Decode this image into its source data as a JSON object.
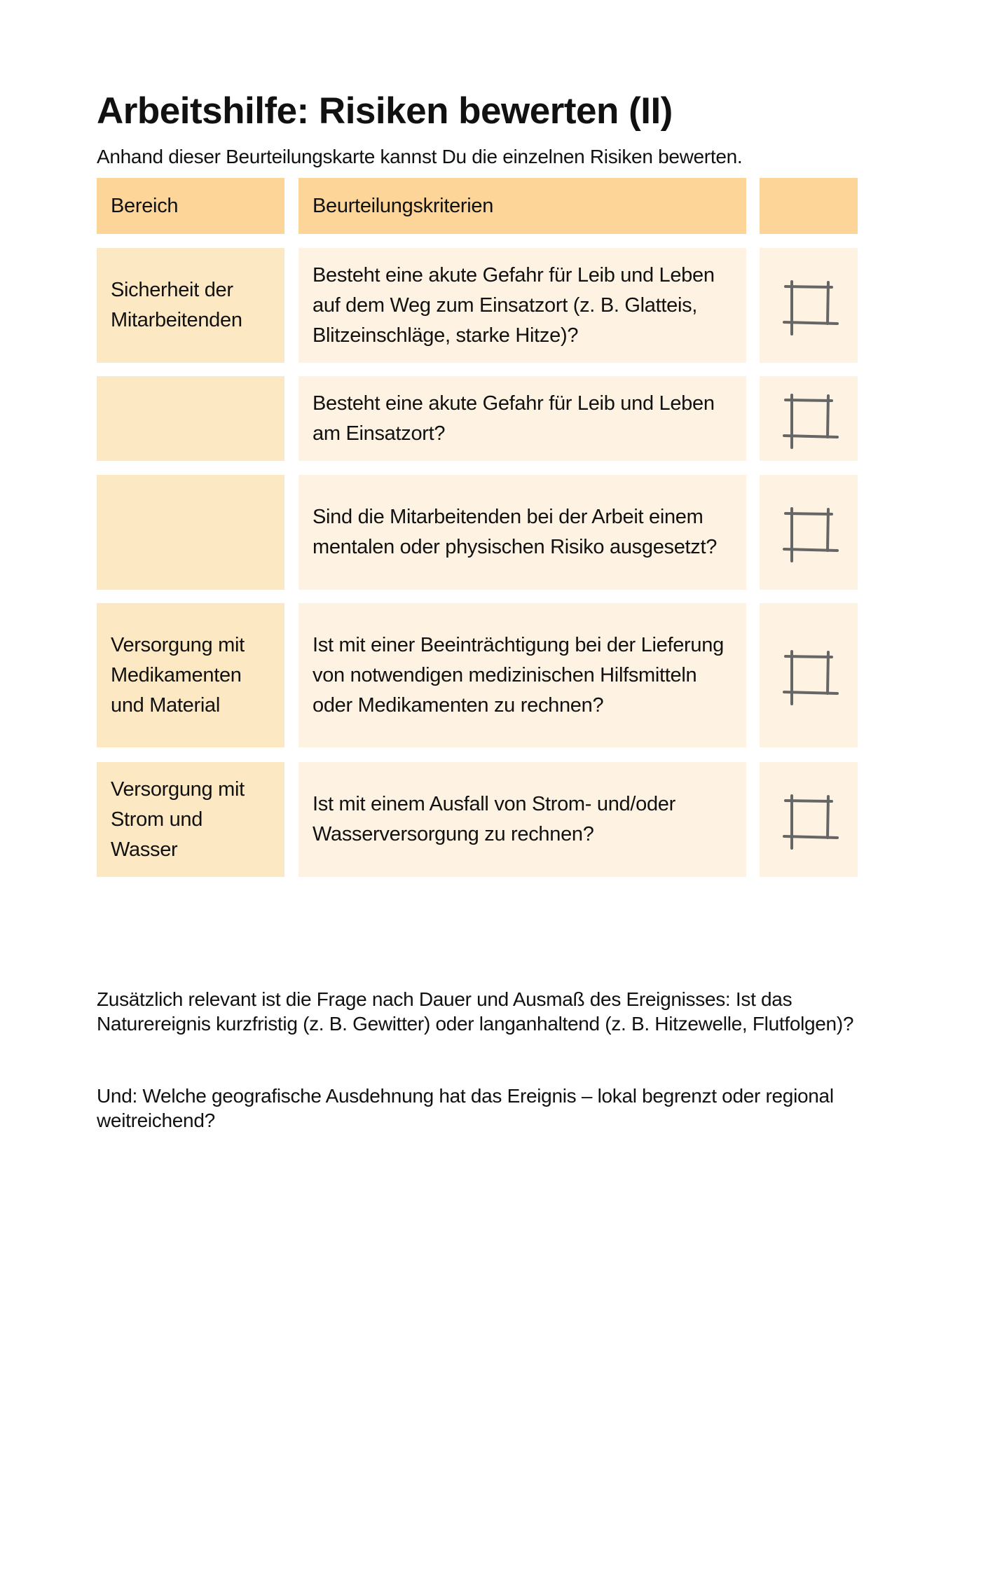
{
  "title": "Arbeitshilfe: Risiken bewerten (II)",
  "subtitle": "Anhand dieser Beurteilungskarte kannst Du die einzelnen Risiken bewerten.",
  "table": {
    "headers": [
      "Bereich",
      "Beurteilungskriterien",
      ""
    ],
    "rows": [
      {
        "bereich": "Sicherheit der Mitarbeitenden",
        "kriterium": "Besteht eine akute Gefahr für Leib und Leben auf dem Weg zum Einsatzort (z. B. Glatteis, Blitzeinschläge, starke Hitze)?",
        "checked": false
      },
      {
        "bereich": "",
        "kriterium": "Besteht eine akute Gefahr für Leib und Leben am Einsatzort?",
        "checked": false
      },
      {
        "bereich": "",
        "kriterium": "Sind die Mitarbeitenden bei der Arbeit einem mentalen oder physischen Risiko ausgesetzt?",
        "checked": false
      },
      {
        "bereich": "Versorgung mit Medikamenten und Material",
        "kriterium": "Ist mit einer Beeinträchtigung bei der Lieferung von notwendigen medizinischen Hilfsmitteln oder Medikamenten zu rechnen?",
        "checked": false
      },
      {
        "bereich": "Versorgung mit Strom und Wasser",
        "kriterium": "Ist mit einem Ausfall von Strom- und/oder Wasserversorgung zu rechnen?",
        "checked": false
      }
    ]
  },
  "notes": {
    "paragraph1": "Zusätzlich relevant ist die Frage nach Dauer und Ausmaß des Ereignisses: Ist das Naturereignis kurzfristig (z. B. Gewitter) oder langanhaltend (z. B. Hitzewelle, Flutfolgen)?",
    "paragraph2": "Und: Welche geografische Ausdehnung hat das Ereignis – lokal begrenzt oder regional weitreichend?"
  },
  "colors": {
    "header": "#fdd599",
    "area_cell": "#fde8c4",
    "criteria_cell": "#fef3e2",
    "checkbox_stroke": "#666666"
  },
  "icons": {
    "checkbox": "hand-drawn-checkbox-icon"
  }
}
